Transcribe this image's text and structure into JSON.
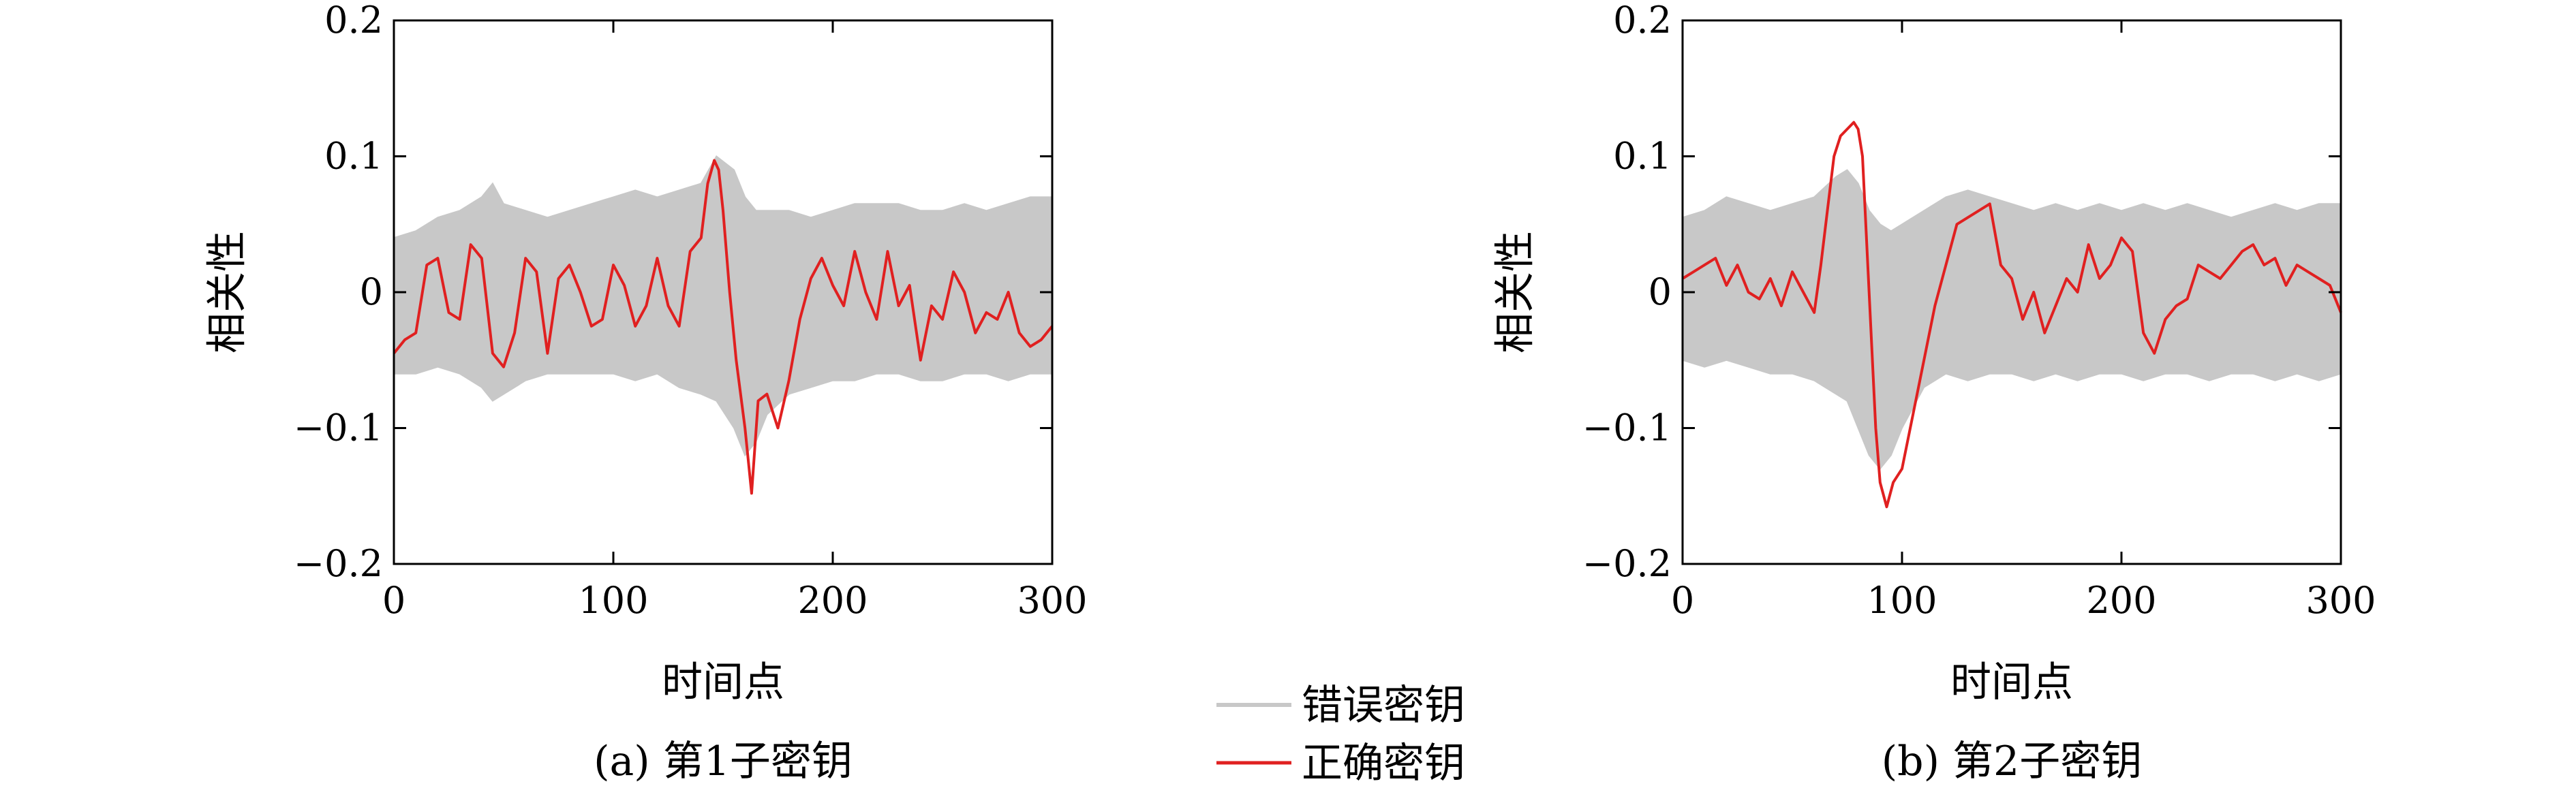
{
  "colors": {
    "wrong_key": "#c8c8c8",
    "correct_key": "#e02020",
    "axis": "#000000"
  },
  "legend": {
    "placement": "bottom-center",
    "wrong_key_label": "错误密钥",
    "correct_key_label": "正确密钥"
  },
  "chart_data": [
    {
      "type": "line",
      "caption": "(a) 第1子密钥",
      "xlabel": "时间点",
      "ylabel": "相关性",
      "xlim": [
        0,
        300
      ],
      "ylim": [
        -0.2,
        0.2
      ],
      "xticks": [
        0,
        100,
        200,
        300
      ],
      "xtick_labels": [
        "0",
        "100",
        "200",
        "300"
      ],
      "yticks": [
        -0.2,
        -0.1,
        0,
        0.1,
        0.2
      ],
      "ytick_labels": [
        "−0.2",
        "−0.1",
        "0",
        "0.1",
        "0.2"
      ],
      "grid": false,
      "series": [
        {
          "name": "错误密钥",
          "kind": "band",
          "x": [
            0,
            10,
            20,
            30,
            40,
            45,
            50,
            60,
            70,
            80,
            90,
            100,
            110,
            120,
            130,
            140,
            147,
            155,
            160,
            165,
            170,
            180,
            190,
            200,
            210,
            220,
            230,
            240,
            250,
            260,
            270,
            280,
            290,
            300
          ],
          "upper": [
            0.04,
            0.045,
            0.055,
            0.06,
            0.07,
            0.08,
            0.065,
            0.06,
            0.055,
            0.06,
            0.065,
            0.07,
            0.075,
            0.07,
            0.075,
            0.08,
            0.1,
            0.09,
            0.07,
            0.06,
            0.06,
            0.06,
            0.055,
            0.06,
            0.065,
            0.065,
            0.065,
            0.06,
            0.06,
            0.065,
            0.06,
            0.065,
            0.07,
            0.07
          ],
          "lower": [
            -0.06,
            -0.06,
            -0.055,
            -0.06,
            -0.07,
            -0.08,
            -0.075,
            -0.065,
            -0.06,
            -0.06,
            -0.06,
            -0.06,
            -0.065,
            -0.06,
            -0.07,
            -0.075,
            -0.08,
            -0.1,
            -0.12,
            -0.11,
            -0.09,
            -0.075,
            -0.07,
            -0.065,
            -0.065,
            -0.06,
            -0.06,
            -0.065,
            -0.065,
            -0.06,
            -0.06,
            -0.065,
            -0.06,
            -0.06
          ]
        },
        {
          "name": "正确密钥",
          "kind": "line",
          "x": [
            0,
            5,
            10,
            15,
            20,
            25,
            30,
            35,
            40,
            45,
            50,
            55,
            60,
            65,
            70,
            75,
            80,
            85,
            90,
            95,
            100,
            105,
            110,
            115,
            120,
            125,
            130,
            135,
            140,
            143,
            146,
            148,
            150,
            153,
            156,
            160,
            163,
            166,
            170,
            175,
            180,
            185,
            190,
            195,
            200,
            205,
            210,
            215,
            220,
            225,
            230,
            235,
            240,
            245,
            250,
            255,
            260,
            265,
            270,
            275,
            280,
            285,
            290,
            295,
            300
          ],
          "y": [
            -0.045,
            -0.035,
            -0.03,
            0.02,
            0.025,
            -0.015,
            -0.02,
            0.035,
            0.025,
            -0.045,
            -0.055,
            -0.03,
            0.025,
            0.015,
            -0.045,
            0.01,
            0.02,
            0.0,
            -0.025,
            -0.02,
            0.02,
            0.005,
            -0.025,
            -0.01,
            0.025,
            -0.01,
            -0.025,
            0.03,
            0.04,
            0.08,
            0.097,
            0.09,
            0.06,
            0.0,
            -0.05,
            -0.1,
            -0.148,
            -0.08,
            -0.075,
            -0.1,
            -0.065,
            -0.02,
            0.01,
            0.025,
            0.005,
            -0.01,
            0.03,
            0.0,
            -0.02,
            0.03,
            -0.01,
            0.005,
            -0.05,
            -0.01,
            -0.02,
            0.015,
            0.0,
            -0.03,
            -0.015,
            -0.02,
            0.0,
            -0.03,
            -0.04,
            -0.035,
            -0.025
          ]
        }
      ]
    },
    {
      "type": "line",
      "caption": "(b) 第2子密钥",
      "xlabel": "时间点",
      "ylabel": "相关性",
      "xlim": [
        0,
        300
      ],
      "ylim": [
        -0.2,
        0.2
      ],
      "xticks": [
        0,
        100,
        200,
        300
      ],
      "xtick_labels": [
        "0",
        "100",
        "200",
        "300"
      ],
      "yticks": [
        -0.2,
        -0.1,
        0,
        0.1,
        0.2
      ],
      "ytick_labels": [
        "−0.2",
        "−0.1",
        "0",
        "0.1",
        "0.2"
      ],
      "grid": false,
      "series": [
        {
          "name": "错误密钥",
          "kind": "band",
          "x": [
            0,
            10,
            20,
            30,
            40,
            50,
            60,
            70,
            75,
            80,
            85,
            90,
            95,
            100,
            110,
            120,
            130,
            140,
            150,
            160,
            170,
            180,
            190,
            200,
            210,
            220,
            230,
            240,
            250,
            260,
            270,
            280,
            290,
            300
          ],
          "upper": [
            0.055,
            0.06,
            0.07,
            0.065,
            0.06,
            0.065,
            0.07,
            0.085,
            0.09,
            0.08,
            0.06,
            0.05,
            0.045,
            0.05,
            0.06,
            0.07,
            0.075,
            0.07,
            0.065,
            0.06,
            0.065,
            0.06,
            0.065,
            0.06,
            0.065,
            0.06,
            0.065,
            0.06,
            0.055,
            0.06,
            0.065,
            0.06,
            0.065,
            0.065
          ],
          "lower": [
            -0.05,
            -0.055,
            -0.05,
            -0.055,
            -0.06,
            -0.06,
            -0.065,
            -0.075,
            -0.08,
            -0.1,
            -0.12,
            -0.13,
            -0.12,
            -0.1,
            -0.07,
            -0.06,
            -0.065,
            -0.06,
            -0.06,
            -0.065,
            -0.06,
            -0.065,
            -0.06,
            -0.06,
            -0.065,
            -0.06,
            -0.06,
            -0.065,
            -0.06,
            -0.06,
            -0.065,
            -0.06,
            -0.065,
            -0.06
          ]
        },
        {
          "name": "正确密钥",
          "kind": "line",
          "x": [
            0,
            5,
            10,
            15,
            20,
            25,
            30,
            35,
            40,
            45,
            50,
            55,
            60,
            63,
            66,
            69,
            72,
            75,
            78,
            80,
            82,
            85,
            88,
            90,
            93,
            96,
            100,
            105,
            110,
            115,
            120,
            125,
            130,
            135,
            140,
            145,
            150,
            155,
            160,
            165,
            170,
            175,
            180,
            185,
            190,
            195,
            200,
            205,
            210,
            215,
            220,
            225,
            230,
            235,
            240,
            245,
            250,
            255,
            260,
            265,
            270,
            275,
            280,
            285,
            290,
            295,
            300
          ],
          "y": [
            0.01,
            0.015,
            0.02,
            0.025,
            0.005,
            0.02,
            0.0,
            -0.005,
            0.01,
            -0.01,
            0.015,
            0.0,
            -0.015,
            0.02,
            0.06,
            0.1,
            0.115,
            0.12,
            0.125,
            0.12,
            0.1,
            0.0,
            -0.1,
            -0.14,
            -0.158,
            -0.14,
            -0.13,
            -0.09,
            -0.05,
            -0.01,
            0.02,
            0.05,
            0.055,
            0.06,
            0.065,
            0.02,
            0.01,
            -0.02,
            0.0,
            -0.03,
            -0.01,
            0.01,
            0.0,
            0.035,
            0.01,
            0.02,
            0.04,
            0.03,
            -0.03,
            -0.045,
            -0.02,
            -0.01,
            -0.005,
            0.02,
            0.015,
            0.01,
            0.02,
            0.03,
            0.035,
            0.02,
            0.025,
            0.005,
            0.02,
            0.015,
            0.01,
            0.005,
            -0.015
          ]
        }
      ]
    }
  ]
}
